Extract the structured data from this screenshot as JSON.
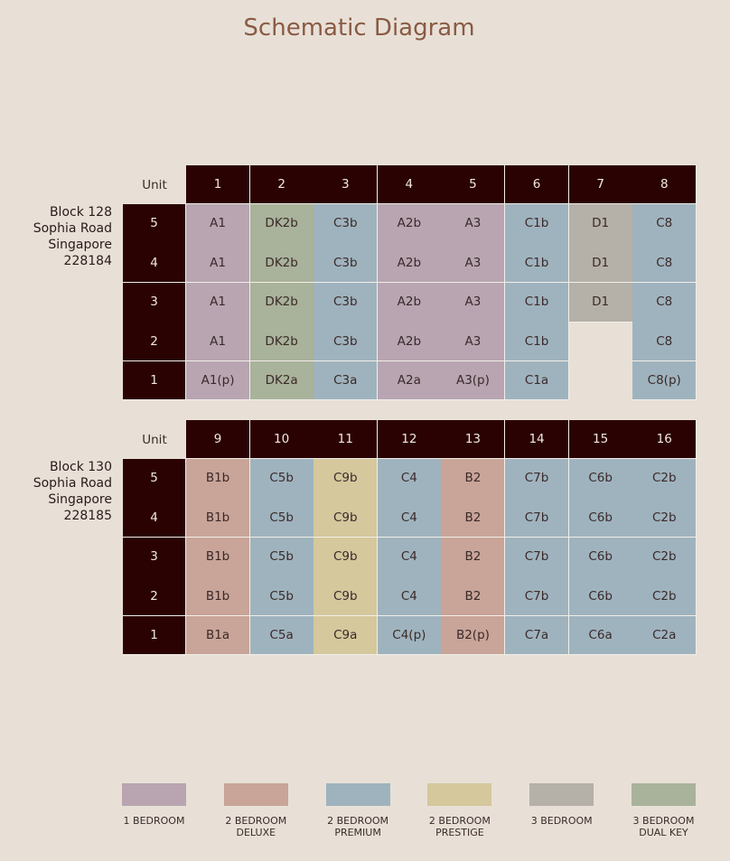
{
  "title": "Schematic Diagram",
  "blocks": [
    {
      "address": [
        "Block 128",
        "Sophia Road",
        "Singapore",
        "228184"
      ],
      "unit_label": "Unit",
      "units": [
        "1",
        "2",
        "3",
        "4",
        "5",
        "6",
        "7",
        "8"
      ],
      "column_colors": [
        "#b8a5b1",
        "#a9b29a",
        "#9fb3be",
        "#b8a5b1",
        "#b8a5b1",
        "#9fb3be",
        "#b5b0a8",
        "#9fb3be"
      ],
      "rows": [
        {
          "floor": "5",
          "cells": [
            "A1",
            "DK2b",
            "C3b",
            "A2b",
            "A3",
            "C1b",
            "D1",
            "C8"
          ]
        },
        {
          "floor": "4",
          "cells": [
            "A1",
            "DK2b",
            "C3b",
            "A2b",
            "A3",
            "C1b",
            "D1",
            "C8"
          ]
        },
        {
          "floor": "3",
          "cells": [
            "A1",
            "DK2b",
            "C3b",
            "A2b",
            "A3",
            "C1b",
            "D1",
            "C8"
          ]
        },
        {
          "floor": "2",
          "cells": [
            "A1",
            "DK2b",
            "C3b",
            "A2b",
            "A3",
            "C1b",
            null,
            "C8"
          ]
        },
        {
          "floor": "1",
          "cells": [
            "A1(p)",
            "DK2a",
            "C3a",
            "A2a",
            "A3(p)",
            "C1a",
            null,
            "C8(p)"
          ]
        }
      ]
    },
    {
      "address": [
        "Block 130",
        "Sophia Road",
        "Singapore",
        "228185"
      ],
      "unit_label": "Unit",
      "units": [
        "9",
        "10",
        "11",
        "12",
        "13",
        "14",
        "15",
        "16"
      ],
      "column_colors": [
        "#c9a498",
        "#9fb3be",
        "#d4c89c",
        "#9fb3be",
        "#c9a498",
        "#9fb3be",
        "#9fb3be",
        "#9fb3be"
      ],
      "rows": [
        {
          "floor": "5",
          "cells": [
            "B1b",
            "C5b",
            "C9b",
            "C4",
            "B2",
            "C7b",
            "C6b",
            "C2b"
          ]
        },
        {
          "floor": "4",
          "cells": [
            "B1b",
            "C5b",
            "C9b",
            "C4",
            "B2",
            "C7b",
            "C6b",
            "C2b"
          ]
        },
        {
          "floor": "3",
          "cells": [
            "B1b",
            "C5b",
            "C9b",
            "C4",
            "B2",
            "C7b",
            "C6b",
            "C2b"
          ]
        },
        {
          "floor": "2",
          "cells": [
            "B1b",
            "C5b",
            "C9b",
            "C4",
            "B2",
            "C7b",
            "C6b",
            "C2b"
          ]
        },
        {
          "floor": "1",
          "cells": [
            "B1a",
            "C5a",
            "C9a",
            "C4(p)",
            "B2(p)",
            "C7a",
            "C6a",
            "C2a"
          ]
        }
      ]
    }
  ],
  "legend": [
    {
      "color": "#b8a5b1",
      "lines": [
        "1 BEDROOM"
      ]
    },
    {
      "color": "#c9a498",
      "lines": [
        "2 BEDROOM",
        "DELUXE"
      ]
    },
    {
      "color": "#9fb3be",
      "lines": [
        "2 BEDROOM",
        "PREMIUM"
      ]
    },
    {
      "color": "#d4c89c",
      "lines": [
        "2 BEDROOM",
        "PRESTIGE"
      ]
    },
    {
      "color": "#b5b0a8",
      "lines": [
        "3 BEDROOM"
      ]
    },
    {
      "color": "#a9b29a",
      "lines": [
        "3 BEDROOM",
        "DUAL KEY"
      ]
    }
  ]
}
